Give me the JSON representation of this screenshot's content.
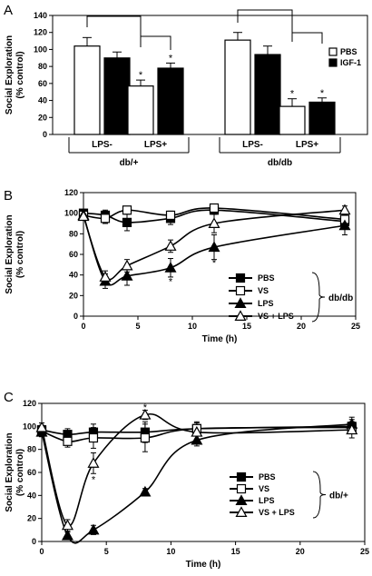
{
  "chart_data": [
    {
      "panel": "A",
      "type": "bar",
      "ylabel": "Social Exploration\n(% control)",
      "ylim": [
        0,
        140
      ],
      "yticks": [
        0,
        20,
        40,
        60,
        80,
        100,
        120,
        140
      ],
      "series": [
        {
          "name": "PBS",
          "color": "#ffffff"
        },
        {
          "name": "IGF-1",
          "color": "#000000"
        }
      ],
      "groups": [
        {
          "label": "db/+",
          "subgroups": [
            {
              "label": "LPS-",
              "values": [
                104,
                90
              ],
              "errors": [
                10,
                7
              ],
              "stars": [
                false,
                false
              ]
            },
            {
              "label": "LPS+",
              "values": [
                57,
                78
              ],
              "errors": [
                7,
                6
              ],
              "stars": [
                true,
                true
              ]
            }
          ]
        },
        {
          "label": "db/db",
          "subgroups": [
            {
              "label": "LPS-",
              "values": [
                111,
                94
              ],
              "errors": [
                9,
                10
              ],
              "stars": [
                false,
                false
              ]
            },
            {
              "label": "LPS+",
              "values": [
                33,
                38
              ],
              "errors": [
                9,
                5
              ],
              "stars": [
                true,
                true
              ]
            }
          ]
        }
      ],
      "legend": "right"
    },
    {
      "panel": "B",
      "type": "line",
      "xlabel": "Time (h)",
      "ylabel": "Social Exploration\n(% control)",
      "xlim": [
        0,
        25
      ],
      "ylim": [
        0,
        120
      ],
      "xticks": [
        0,
        5,
        10,
        15,
        20,
        25
      ],
      "yticks": [
        0,
        20,
        40,
        60,
        80,
        100,
        120
      ],
      "x": [
        0,
        2,
        4,
        8,
        12,
        24
      ],
      "series": [
        {
          "name": "PBS",
          "marker": "square-filled",
          "values": [
            100,
            98,
            91,
            95,
            103,
            92
          ],
          "errors": [
            3,
            5,
            8,
            6,
            4,
            6
          ]
        },
        {
          "name": "VS",
          "marker": "square-open",
          "values": [
            98,
            95,
            103,
            98,
            105,
            94
          ],
          "errors": [
            3,
            5,
            3,
            4,
            3,
            5
          ]
        },
        {
          "name": "LPS",
          "marker": "triangle-filled",
          "values": [
            98,
            34,
            39,
            47,
            67,
            88
          ],
          "errors": [
            3,
            7,
            9,
            9,
            12,
            9
          ]
        },
        {
          "name": "VS + LPS",
          "marker": "triangle-open",
          "values": [
            97,
            38,
            49,
            68,
            90,
            103
          ],
          "errors": [
            3,
            6,
            6,
            6,
            9,
            4
          ]
        }
      ],
      "annotations": [
        {
          "x": 8,
          "y": 34,
          "text": "*"
        },
        {
          "x": 12,
          "y": 52,
          "text": "*"
        }
      ],
      "group_label": "db/db",
      "legend": "bottom-center"
    },
    {
      "panel": "C",
      "type": "line",
      "xlabel": "Time (h)",
      "ylabel": "Social Exploration\n(% control)",
      "xlim": [
        0,
        25
      ],
      "ylim": [
        0,
        120
      ],
      "xticks": [
        0,
        5,
        10,
        15,
        20,
        25
      ],
      "yticks": [
        0,
        20,
        40,
        60,
        80,
        100,
        120
      ],
      "x": [
        0,
        2,
        4,
        8,
        12,
        24
      ],
      "series": [
        {
          "name": "PBS",
          "marker": "square-filled",
          "values": [
            97,
            93,
            95,
            95,
            98,
            100
          ],
          "errors": [
            4,
            5,
            7,
            9,
            6,
            6
          ]
        },
        {
          "name": "VS",
          "marker": "square-open",
          "values": [
            96,
            87,
            90,
            90,
            98,
            99
          ],
          "errors": [
            4,
            5,
            9,
            12,
            5,
            5
          ]
        },
        {
          "name": "LPS",
          "marker": "triangle-filled",
          "values": [
            95,
            5,
            10,
            43,
            88,
            102
          ],
          "errors": [
            4,
            3,
            4,
            3,
            5,
            6
          ]
        },
        {
          "name": "VS + LPS",
          "marker": "triangle-open",
          "values": [
            99,
            14,
            68,
            110,
            95,
            97
          ],
          "errors": [
            4,
            5,
            9,
            4,
            6,
            7
          ]
        }
      ],
      "annotations": [
        {
          "x": 4,
          "y": 54,
          "text": "*"
        },
        {
          "x": 8,
          "y": 117,
          "text": "*"
        }
      ],
      "group_label": "db/+",
      "legend": "bottom-center"
    }
  ]
}
